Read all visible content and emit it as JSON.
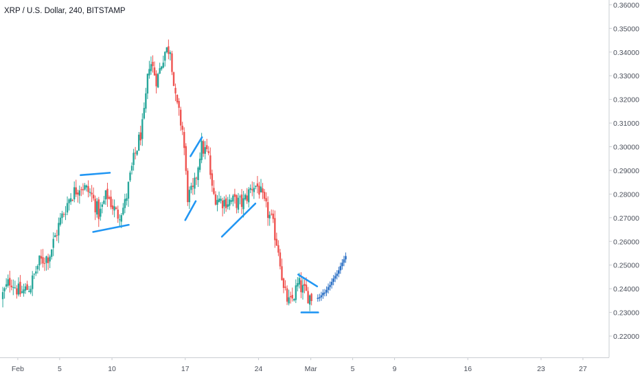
{
  "chart_data": {
    "type": "candlestick",
    "title": "XRP / U.S. Dollar, 240, BITSTAMP",
    "y_ticks": [
      "0.36000",
      "0.35000",
      "0.34000",
      "0.33000",
      "0.32000",
      "0.31000",
      "0.30000",
      "0.29000",
      "0.28000",
      "0.27000",
      "0.26000",
      "0.25000",
      "0.24000",
      "0.23000",
      "0.22000"
    ],
    "y_tick_values": [
      0.36,
      0.35,
      0.34,
      0.33,
      0.32,
      0.31,
      0.3,
      0.29,
      0.28,
      0.27,
      0.26,
      0.25,
      0.24,
      0.23,
      0.22
    ],
    "x_ticks": [
      "Feb",
      "5",
      "10",
      "17",
      "24",
      "Mar",
      "5",
      "9",
      "16",
      "23",
      "27"
    ],
    "x_tick_days": [
      1,
      5,
      10,
      17,
      24,
      29,
      33,
      37,
      44,
      51,
      55
    ],
    "ylim": [
      0.211,
      0.362
    ],
    "xlim_days": [
      -0.7,
      57.5
    ],
    "colors": {
      "up": "#26a69a",
      "down": "#ef5350",
      "drawing": "#2196f3",
      "projection": "#2a6fc4"
    },
    "price_path": [
      [
        -0.6,
        0.236
      ],
      [
        0.3,
        0.244
      ],
      [
        1.2,
        0.238
      ],
      [
        2.2,
        0.241
      ],
      [
        3.0,
        0.251
      ],
      [
        4.0,
        0.254
      ],
      [
        5.0,
        0.268
      ],
      [
        6.0,
        0.279
      ],
      [
        7.0,
        0.284
      ],
      [
        8.0,
        0.28
      ],
      [
        8.8,
        0.271
      ],
      [
        9.5,
        0.28
      ],
      [
        10.5,
        0.271
      ],
      [
        11.2,
        0.275
      ],
      [
        12.0,
        0.293
      ],
      [
        13.0,
        0.31
      ],
      [
        13.6,
        0.337
      ],
      [
        14.3,
        0.328
      ],
      [
        15.0,
        0.34
      ],
      [
        15.6,
        0.342
      ],
      [
        16.0,
        0.321
      ],
      [
        16.8,
        0.306
      ],
      [
        17.2,
        0.279
      ],
      [
        17.8,
        0.281
      ],
      [
        18.5,
        0.3
      ],
      [
        19.2,
        0.297
      ],
      [
        19.6,
        0.28
      ],
      [
        20.5,
        0.277
      ],
      [
        21.5,
        0.277
      ],
      [
        22.5,
        0.276
      ],
      [
        23.5,
        0.284
      ],
      [
        24.0,
        0.283
      ],
      [
        24.5,
        0.276
      ],
      [
        25.3,
        0.268
      ],
      [
        26.0,
        0.255
      ],
      [
        26.4,
        0.239
      ],
      [
        27.0,
        0.233
      ],
      [
        27.8,
        0.242
      ],
      [
        28.5,
        0.238
      ],
      [
        29.2,
        0.236
      ]
    ],
    "drawings": [
      {
        "day1": 7.0,
        "p1": 0.288,
        "day2": 9.8,
        "p2": 0.289
      },
      {
        "day1": 8.2,
        "p1": 0.264,
        "day2": 11.6,
        "p2": 0.267
      },
      {
        "day1": 17.0,
        "p1": 0.269,
        "day2": 18.0,
        "p2": 0.277
      },
      {
        "day1": 17.5,
        "p1": 0.296,
        "day2": 18.6,
        "p2": 0.304
      },
      {
        "day1": 20.5,
        "p1": 0.262,
        "day2": 23.7,
        "p2": 0.276
      },
      {
        "day1": 27.8,
        "p1": 0.246,
        "day2": 29.6,
        "p2": 0.241
      },
      {
        "day1": 28.1,
        "p1": 0.23,
        "day2": 29.7,
        "p2": 0.23
      }
    ],
    "projection": {
      "start_day": 29.5,
      "start_price": 0.236,
      "end_day": 32.4,
      "end_price": 0.254
    }
  }
}
